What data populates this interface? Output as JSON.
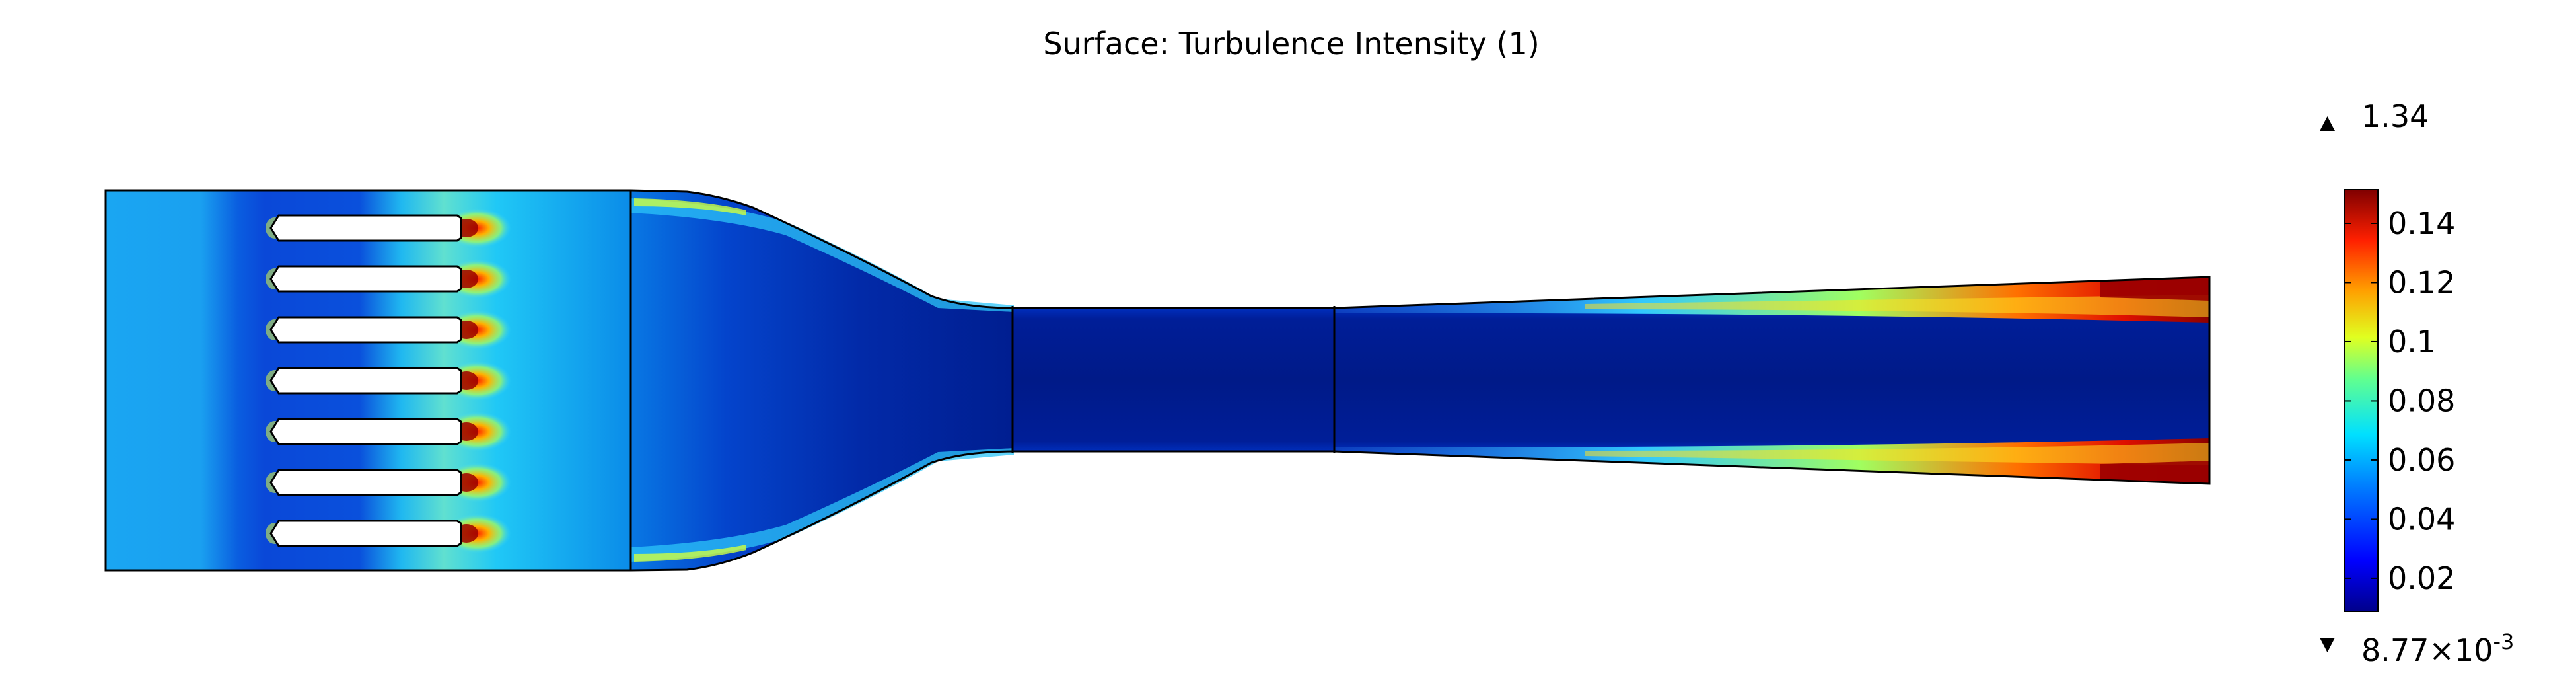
{
  "plot": {
    "title": "Surface: Turbulence Intensity (1)",
    "quantity": "Turbulence Intensity",
    "unit": "1",
    "colormap": "rainbow",
    "colors": {
      "freestream": "#15a0f0",
      "core_flow": "#001a8a",
      "shear_layer": "#30d8ff",
      "wall_hot": "#8b0000",
      "wake_hot": "#ff3000",
      "wake_mid": "#f0e020",
      "vane_fill": "#ffffff",
      "outline": "#000000"
    },
    "max_label": "1.34",
    "min_label_mantissa": "8.77×10",
    "min_label_exponent": "-3",
    "max_marker_icon": "triangle-up-icon",
    "min_marker_icon": "triangle-down-icon",
    "colorbar": {
      "ticks": [
        "0.14",
        "0.12",
        "0.1",
        "0.08",
        "0.06",
        "0.04",
        "0.02"
      ],
      "range": [
        0.0088,
        0.1514
      ]
    },
    "vane_count": 7
  }
}
